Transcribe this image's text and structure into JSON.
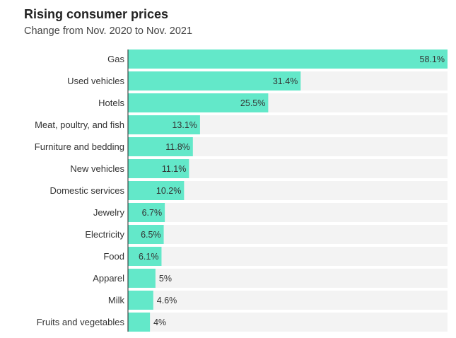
{
  "chart_data": {
    "type": "bar",
    "orientation": "horizontal",
    "title": "Rising consumer prices",
    "subtitle": "Change from Nov. 2020 to Nov. 2021",
    "xlabel": "",
    "ylabel": "",
    "xlim": [
      0,
      58.1
    ],
    "grid": false,
    "legend": "none",
    "categories": [
      "Gas",
      "Used vehicles",
      "Hotels",
      "Meat, poultry, and fish",
      "Furniture and bedding",
      "New vehicles",
      "Domestic services",
      "Jewelry",
      "Electricity",
      "Food",
      "Apparel",
      "Milk",
      "Fruits and vegetables"
    ],
    "values": [
      58.1,
      31.4,
      25.5,
      13.1,
      11.8,
      11.1,
      10.2,
      6.7,
      6.5,
      6.1,
      5,
      4.6,
      4
    ],
    "labels": [
      "58.1%",
      "31.4%",
      "25.5%",
      "13.1%",
      "11.8%",
      "11.1%",
      "10.2%",
      "6.7%",
      "6.5%",
      "6.1%",
      "5%",
      "4.6%",
      "4%"
    ],
    "colors": {
      "bar": "#63e8c9",
      "track": "#f3f3f3",
      "axis": "#222222"
    }
  }
}
